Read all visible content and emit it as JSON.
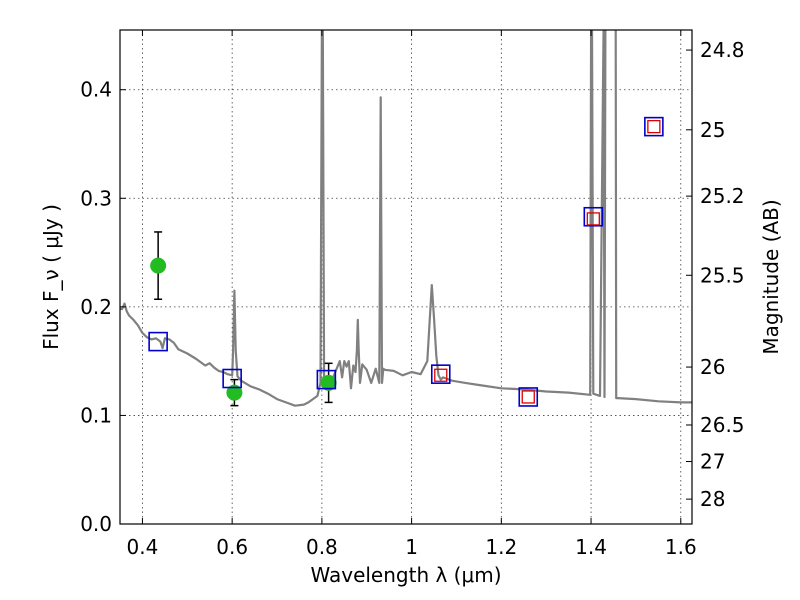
{
  "chart_data": {
    "type": "scatter",
    "xlabel": "Wavelength  λ (μm)",
    "ylabel": "Flux  F_ν  ( μJy )",
    "ylabel_right": "Magnitude (AB)",
    "xlim": [
      0.35,
      1.625
    ],
    "ylim": [
      0.0,
      0.455
    ],
    "grid": true,
    "x_ticks": [
      0.4,
      0.6,
      0.8,
      1.0,
      1.2,
      1.4,
      1.6
    ],
    "x_tick_labels": [
      "0.4",
      "0.6",
      "0.8",
      "1",
      "1.2",
      "1.4",
      "1.6"
    ],
    "y_ticks": [
      0.0,
      0.1,
      0.2,
      0.3,
      0.4
    ],
    "y_tick_labels": [
      "0.0",
      "0.1",
      "0.2",
      "0.3",
      "0.4"
    ],
    "mag_ticks": [
      24.8,
      25.0,
      25.2,
      25.5,
      26.0,
      26.5,
      27.0,
      28.0
    ],
    "mag_tick_labels": [
      "24.8",
      "25",
      "25.2",
      "25.5",
      "26",
      "26.5",
      "27",
      "28"
    ],
    "colors": {
      "sed": "#808080",
      "observed": "#22bb22",
      "model_blue": "#0000cc",
      "model_red": "#dd0000",
      "errorbar": "#000000"
    },
    "series": [
      {
        "kind": "line",
        "x": [
          0.35,
          0.355,
          0.36,
          0.365,
          0.37,
          0.38,
          0.39,
          0.4,
          0.41,
          0.42,
          0.43,
          0.44,
          0.445,
          0.45,
          0.46,
          0.47,
          0.48,
          0.5,
          0.52,
          0.54,
          0.55,
          0.56,
          0.57,
          0.58,
          0.59,
          0.6,
          0.602,
          0.605,
          0.608,
          0.612,
          0.62,
          0.64,
          0.66,
          0.68,
          0.7,
          0.72,
          0.74,
          0.76,
          0.77,
          0.78,
          0.79,
          0.797,
          0.8,
          0.802,
          0.805,
          0.808,
          0.812,
          0.816,
          0.82,
          0.83,
          0.84,
          0.845,
          0.85,
          0.855,
          0.86,
          0.865,
          0.87,
          0.875,
          0.878,
          0.88,
          0.882,
          0.885,
          0.89,
          0.9,
          0.91,
          0.92,
          0.928,
          0.931,
          0.934,
          0.937,
          0.94,
          0.96,
          0.98,
          1.0,
          1.02,
          1.035,
          1.045,
          1.05,
          1.055,
          1.06,
          1.065,
          1.07,
          1.09,
          1.12,
          1.15,
          1.2,
          1.25,
          1.3,
          1.35,
          1.398,
          1.4,
          1.402,
          1.405,
          1.42,
          1.428,
          1.43,
          1.432,
          1.435,
          1.45,
          1.455,
          1.456,
          1.46,
          1.5,
          1.55,
          1.6,
          1.625
        ],
        "y": [
          0.198,
          0.198,
          0.203,
          0.196,
          0.192,
          0.188,
          0.183,
          0.176,
          0.172,
          0.17,
          0.171,
          0.168,
          0.162,
          0.171,
          0.17,
          0.167,
          0.161,
          0.157,
          0.152,
          0.146,
          0.148,
          0.144,
          0.141,
          0.14,
          0.138,
          0.137,
          0.16,
          0.215,
          0.16,
          0.136,
          0.132,
          0.127,
          0.124,
          0.12,
          0.115,
          0.112,
          0.109,
          0.11,
          0.112,
          0.115,
          0.118,
          0.13,
          0.46,
          0.46,
          0.13,
          0.128,
          0.126,
          0.135,
          0.13,
          0.14,
          0.15,
          0.135,
          0.15,
          0.145,
          0.15,
          0.125,
          0.146,
          0.14,
          0.16,
          0.188,
          0.16,
          0.13,
          0.147,
          0.142,
          0.13,
          0.143,
          0.13,
          0.393,
          0.13,
          0.143,
          0.142,
          0.141,
          0.137,
          0.14,
          0.138,
          0.15,
          0.22,
          0.19,
          0.155,
          0.137,
          0.133,
          0.135,
          0.132,
          0.13,
          0.128,
          0.125,
          0.124,
          0.122,
          0.121,
          0.119,
          0.46,
          0.46,
          0.12,
          0.118,
          0.46,
          0.117,
          0.46,
          0.46,
          0.46,
          0.46,
          0.116,
          0.116,
          0.115,
          0.113,
          0.112,
          0.112
        ]
      },
      {
        "kind": "observed",
        "x": [
          0.435,
          0.605,
          0.815
        ],
        "y": [
          0.238,
          0.121,
          0.13
        ],
        "yerr": [
          0.031,
          0.012,
          0.018
        ]
      },
      {
        "kind": "model_blue_squares",
        "x": [
          0.435,
          0.6,
          0.81,
          1.065,
          1.26,
          1.405,
          1.54
        ],
        "y": [
          0.168,
          0.134,
          0.133,
          0.138,
          0.117,
          0.283,
          0.366
        ]
      },
      {
        "kind": "model_red_squares",
        "x": [
          1.065,
          1.26,
          1.405,
          1.54
        ],
        "y": [
          0.137,
          0.117,
          0.281,
          0.366
        ]
      }
    ]
  }
}
